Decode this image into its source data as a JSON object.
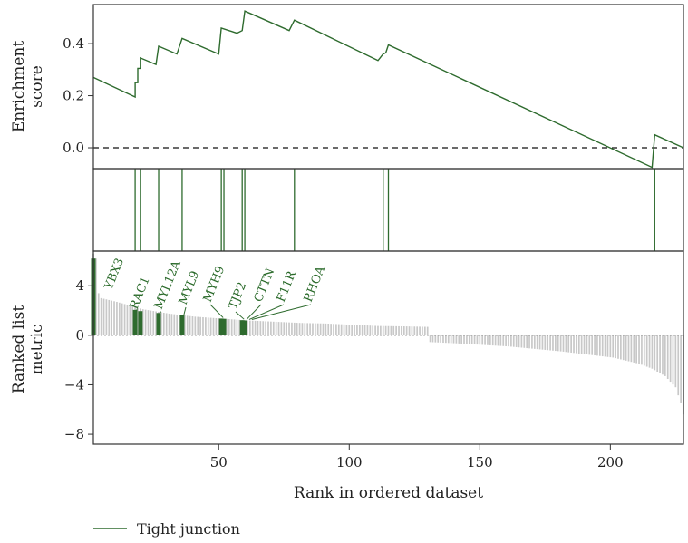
{
  "chart_data": {
    "type": "line",
    "legend": {
      "entries": [
        "Tight junction"
      ],
      "placement": "bottom-left"
    },
    "colors": {
      "curve": "#2e6b2e",
      "hit": "#2e6b2e",
      "metric_bar": "#c8c8c8",
      "frame": "#333333"
    },
    "xlabel": "Rank in ordered dataset",
    "x_range": [
      2,
      228
    ],
    "x_ticks": [
      50,
      100,
      150,
      200
    ],
    "enrichment": {
      "ylabel_lines": [
        "Enrichment",
        "score"
      ],
      "ylim": [
        -0.08,
        0.55
      ],
      "y_ticks": [
        0.0,
        0.2,
        0.4
      ],
      "y_tick_labels": [
        "0.0",
        "0.2",
        "0.4"
      ],
      "zero_line": "dashed",
      "series": [
        {
          "name": "Tight junction",
          "points": [
            [
              2,
              0.27
            ],
            [
              18,
              0.195
            ],
            [
              18,
              0.25
            ],
            [
              19,
              0.25
            ],
            [
              19,
              0.305
            ],
            [
              20,
              0.305
            ],
            [
              20,
              0.345
            ],
            [
              26,
              0.32
            ],
            [
              27,
              0.39
            ],
            [
              34,
              0.36
            ],
            [
              36,
              0.42
            ],
            [
              50,
              0.36
            ],
            [
              51,
              0.46
            ],
            [
              57,
              0.44
            ],
            [
              59,
              0.45
            ],
            [
              60,
              0.525
            ],
            [
              77,
              0.45
            ],
            [
              79,
              0.49
            ],
            [
              111,
              0.335
            ],
            [
              113,
              0.36
            ],
            [
              114,
              0.365
            ],
            [
              115,
              0.395
            ],
            [
              216,
              -0.075
            ],
            [
              217,
              0.05
            ],
            [
              228,
              0.0
            ]
          ]
        }
      ]
    },
    "hits": {
      "ranks": [
        18,
        20,
        27,
        36,
        51,
        52,
        59,
        60,
        79,
        113,
        115,
        217
      ]
    },
    "ranked_metric": {
      "ylabel_lines": [
        "Ranked list",
        "metric"
      ],
      "ylim": [
        -8.8,
        6.8
      ],
      "y_ticks": [
        -8,
        -4,
        0,
        4
      ],
      "y_tick_labels": [
        "−8",
        "−4",
        "0",
        "4"
      ],
      "n": 227,
      "profile": [
        [
          1,
          6.6
        ],
        [
          2,
          6.2
        ],
        [
          3,
          3.4
        ],
        [
          4,
          3.0
        ],
        [
          10,
          2.7
        ],
        [
          20,
          2.1
        ],
        [
          30,
          1.75
        ],
        [
          40,
          1.5
        ],
        [
          50,
          1.35
        ],
        [
          60,
          1.2
        ],
        [
          70,
          1.1
        ],
        [
          80,
          1.0
        ],
        [
          90,
          0.95
        ],
        [
          100,
          0.85
        ],
        [
          110,
          0.75
        ],
        [
          120,
          0.72
        ],
        [
          129,
          0.68
        ],
        [
          130,
          -0.55
        ],
        [
          140,
          -0.65
        ],
        [
          160,
          -0.9
        ],
        [
          180,
          -1.3
        ],
        [
          200,
          -1.8
        ],
        [
          210,
          -2.3
        ],
        [
          215,
          -2.7
        ],
        [
          220,
          -3.3
        ],
        [
          224,
          -4.2
        ],
        [
          226,
          -5.5
        ],
        [
          227,
          -6.4
        ]
      ],
      "highlighted_bars": [
        {
          "rank": 2,
          "value": 6.2
        },
        {
          "rank": 18,
          "value": 2.05
        },
        {
          "rank": 20,
          "value": 1.95
        },
        {
          "rank": 27,
          "value": 1.8
        },
        {
          "rank": 36,
          "value": 1.6
        },
        {
          "rank": 51,
          "value": 1.35
        },
        {
          "rank": 52,
          "value": 1.33
        },
        {
          "rank": 59,
          "value": 1.22
        },
        {
          "rank": 60,
          "value": 1.2
        }
      ],
      "gene_labels": [
        {
          "text": "YBX3",
          "rank": 3,
          "value": 6.2
        },
        {
          "text": "RAC1",
          "rank": 18,
          "value": 2.05
        },
        {
          "text": "MYL12A",
          "rank": 27,
          "value": 1.8
        },
        {
          "text": "MYL9",
          "rank": 36,
          "value": 1.6
        },
        {
          "text": "MYH9",
          "rank": 51,
          "value": 1.35
        },
        {
          "text": "TJP2",
          "rank": 59,
          "value": 1.22
        },
        {
          "text": "CTTN",
          "rank": 60,
          "value": 1.2
        },
        {
          "text": "F11R",
          "rank": 61,
          "value": 1.2
        },
        {
          "text": "RHOA",
          "rank": 62,
          "value": 1.2
        }
      ]
    }
  }
}
